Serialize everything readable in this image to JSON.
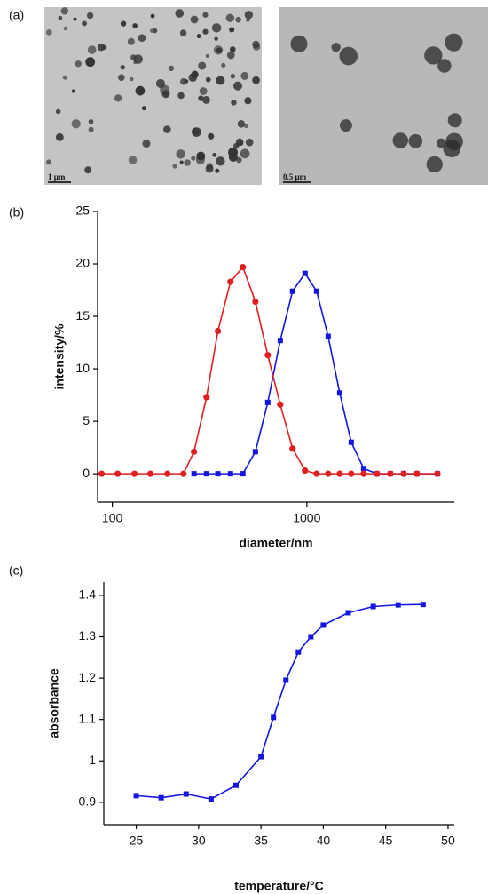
{
  "panels": [
    {
      "label": "(a)",
      "images": [
        {
          "scale_bar": "1 μm"
        },
        {
          "scale_bar": "0.5 μm"
        }
      ]
    }
  ],
  "chart_data": [
    {
      "type": "line",
      "panel": "(b)",
      "xlabel": "diameter/nm",
      "ylabel": "intensity/%",
      "xscale": "log",
      "xlim": [
        84,
        5730
      ],
      "ylim": [
        -2.7,
        25
      ],
      "xticks": [
        100,
        1000
      ],
      "yticks": [
        0,
        5,
        10,
        15,
        20,
        25
      ],
      "x": [
        88.1,
        106.5,
        130,
        157,
        192,
        232,
        263,
        305,
        349,
        405,
        469,
        544,
        630,
        730,
        845,
        979,
        1123,
        1287,
        1476,
        1692,
        1960,
        2295,
        2687,
        3147,
        3684,
        4691
      ],
      "series": [
        {
          "color": "#1515e0",
          "marker": "square",
          "values": [
            null,
            null,
            null,
            null,
            null,
            null,
            0,
            0,
            0,
            0,
            0,
            2.1,
            6.8,
            12.7,
            17.4,
            19.1,
            17.4,
            13.1,
            7.7,
            3.0,
            0.5,
            0,
            0,
            0,
            0,
            0
          ]
        },
        {
          "color": "#e02020",
          "marker": "circle",
          "values": [
            0,
            0,
            0,
            0,
            0,
            0,
            2.1,
            7.3,
            13.6,
            18.3,
            19.7,
            16.4,
            11.3,
            6.6,
            2.4,
            0.3,
            0,
            0,
            0,
            0,
            0,
            0,
            0,
            0,
            0,
            0
          ]
        }
      ]
    },
    {
      "type": "line",
      "panel": "(c)",
      "xlabel": "temperature/°C",
      "ylabel": "absorbance",
      "xscale": "linear",
      "xlim": [
        22.4,
        50.5
      ],
      "ylim": [
        0.846,
        1.432
      ],
      "xticks": [
        25,
        30,
        35,
        40,
        45,
        50
      ],
      "yticks": [
        0.9,
        1.0,
        1.1,
        1.2,
        1.3,
        1.4
      ],
      "x": [
        25,
        27,
        29,
        31,
        33,
        35,
        36,
        37,
        38,
        39,
        40,
        42,
        44,
        46,
        48
      ],
      "series": [
        {
          "color": "#1515e0",
          "marker": "square",
          "values": [
            0.916,
            0.911,
            0.92,
            0.908,
            0.941,
            1.01,
            1.105,
            1.195,
            1.263,
            1.3,
            1.328,
            1.358,
            1.373,
            1.377,
            1.378
          ]
        }
      ]
    }
  ]
}
